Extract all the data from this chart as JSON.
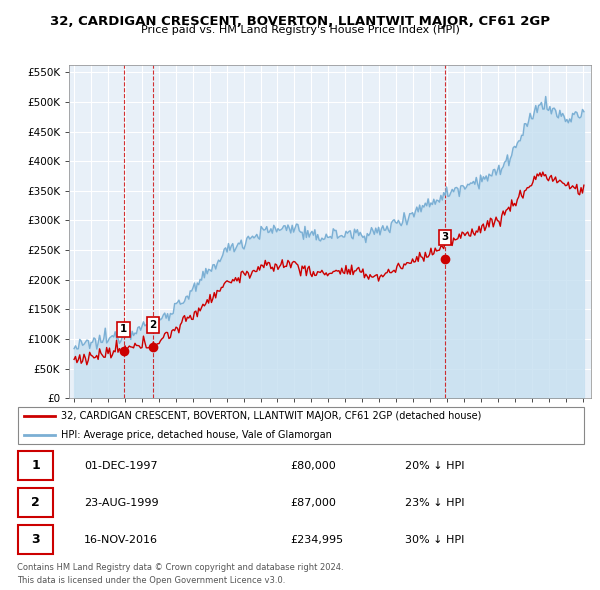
{
  "title": "32, CARDIGAN CRESCENT, BOVERTON, LLANTWIT MAJOR, CF61 2GP",
  "subtitle": "Price paid vs. HM Land Registry's House Price Index (HPI)",
  "legend_line1": "32, CARDIGAN CRESCENT, BOVERTON, LLANTWIT MAJOR, CF61 2GP (detached house)",
  "legend_line2": "HPI: Average price, detached house, Vale of Glamorgan",
  "footer1": "Contains HM Land Registry data © Crown copyright and database right 2024.",
  "footer2": "This data is licensed under the Open Government Licence v3.0.",
  "transactions": [
    {
      "num": "1",
      "date": "01-DEC-1997",
      "price": "£80,000",
      "vs_hpi": "20% ↓ HPI",
      "x_year": 1997.92,
      "y_value": 80000
    },
    {
      "num": "2",
      "date": "23-AUG-1999",
      "price": "£87,000",
      "vs_hpi": "23% ↓ HPI",
      "x_year": 1999.65,
      "y_value": 87000
    },
    {
      "num": "3",
      "date": "16-NOV-2016",
      "price": "£234,995",
      "vs_hpi": "30% ↓ HPI",
      "x_year": 2016.88,
      "y_value": 234995
    }
  ],
  "hpi_color": "#7bafd4",
  "hpi_fill_color": "#ddeeff",
  "price_color": "#cc0000",
  "marker_color": "#cc0000",
  "chart_bg": "#e8f0f8",
  "ylim": [
    0,
    562500
  ],
  "yticks": [
    0,
    50000,
    100000,
    150000,
    200000,
    250000,
    300000,
    350000,
    400000,
    450000,
    500000,
    550000
  ],
  "xlim_start": 1994.7,
  "xlim_end": 2025.5
}
